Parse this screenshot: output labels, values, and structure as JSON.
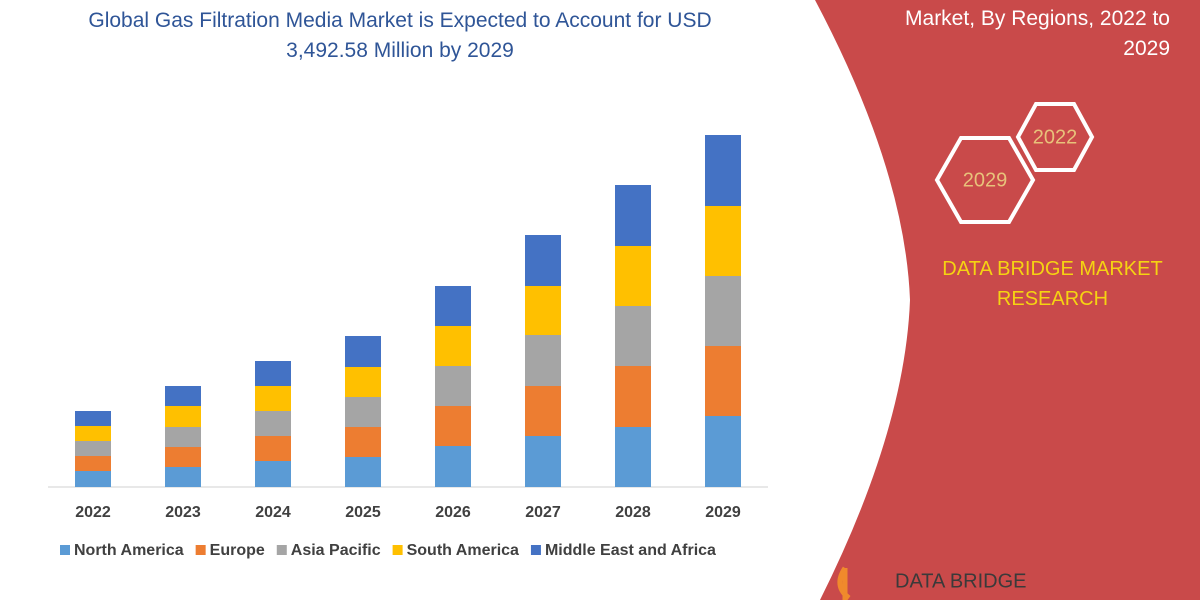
{
  "chart_data": {
    "type": "stacked-bar",
    "title": "Global Gas Filtration Media Market is Expected to Account for USD 3,492.58 Million by 2029",
    "categories": [
      "2022",
      "2023",
      "2024",
      "2025",
      "2026",
      "2027",
      "2028",
      "2029"
    ],
    "series": [
      {
        "name": "North America",
        "color": "#5b9bd5",
        "values": [
          16,
          20,
          26,
          30,
          41,
          51,
          60,
          71
        ]
      },
      {
        "name": "Europe",
        "color": "#ed7d31",
        "values": [
          15,
          20,
          25,
          30,
          40,
          50,
          61,
          70
        ]
      },
      {
        "name": "Asia Pacific",
        "color": "#a5a5a5",
        "values": [
          15,
          20,
          25,
          30,
          40,
          51,
          60,
          70
        ]
      },
      {
        "name": "South America",
        "color": "#ffc000",
        "values": [
          15,
          21,
          25,
          30,
          40,
          49,
          60,
          70
        ]
      },
      {
        "name": "Middle East and Africa",
        "color": "#4472c4",
        "values": [
          15,
          20,
          25,
          31,
          40,
          51,
          61,
          71
        ]
      }
    ],
    "legend": "bottom"
  },
  "panel": {
    "heading": "Market, By Regions, 2022 to 2029",
    "hexagons": [
      "2022",
      "2029"
    ],
    "brand": "DATA BRIDGE MARKET RESEARCH",
    "logo": "DATA BRIDGE"
  }
}
